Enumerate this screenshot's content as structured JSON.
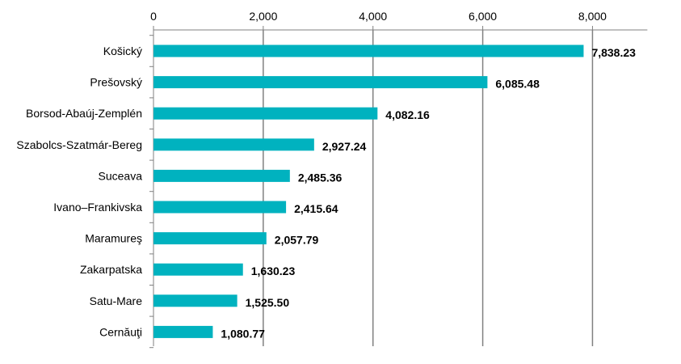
{
  "chart_data": {
    "type": "bar",
    "orientation": "horizontal",
    "categories": [
      "Košický",
      "Prešovský",
      "Borsod-Abaúj-Zemplén",
      "Szabolcs-Szatmár-Bereg",
      "Suceava",
      "Ivano–Frankivska",
      "Maramureş",
      "Zakarpatska",
      "Satu-Mare",
      "Cernăuţi"
    ],
    "values": [
      7838.23,
      6085.48,
      4082.16,
      2927.24,
      2485.36,
      2415.64,
      2057.79,
      1630.23,
      1525.5,
      1080.77
    ],
    "value_labels": [
      "7,838.23",
      "6,085.48",
      "4,082.16",
      "2,927.24",
      "2,485.36",
      "2,415.64",
      "2,057.79",
      "1,630.23",
      "1,525.50",
      "1,080.77"
    ],
    "x_ticks": [
      0,
      2000,
      4000,
      6000,
      8000
    ],
    "x_tick_labels": [
      "0",
      "2,000",
      "4,000",
      "6,000",
      "8,000"
    ],
    "xlim": [
      0,
      9000
    ],
    "x_axis_position": "top",
    "grid": true,
    "bar_color": "#00B2BF",
    "gridline_color": "#808080",
    "title": "",
    "xlabel": "",
    "ylabel": ""
  }
}
